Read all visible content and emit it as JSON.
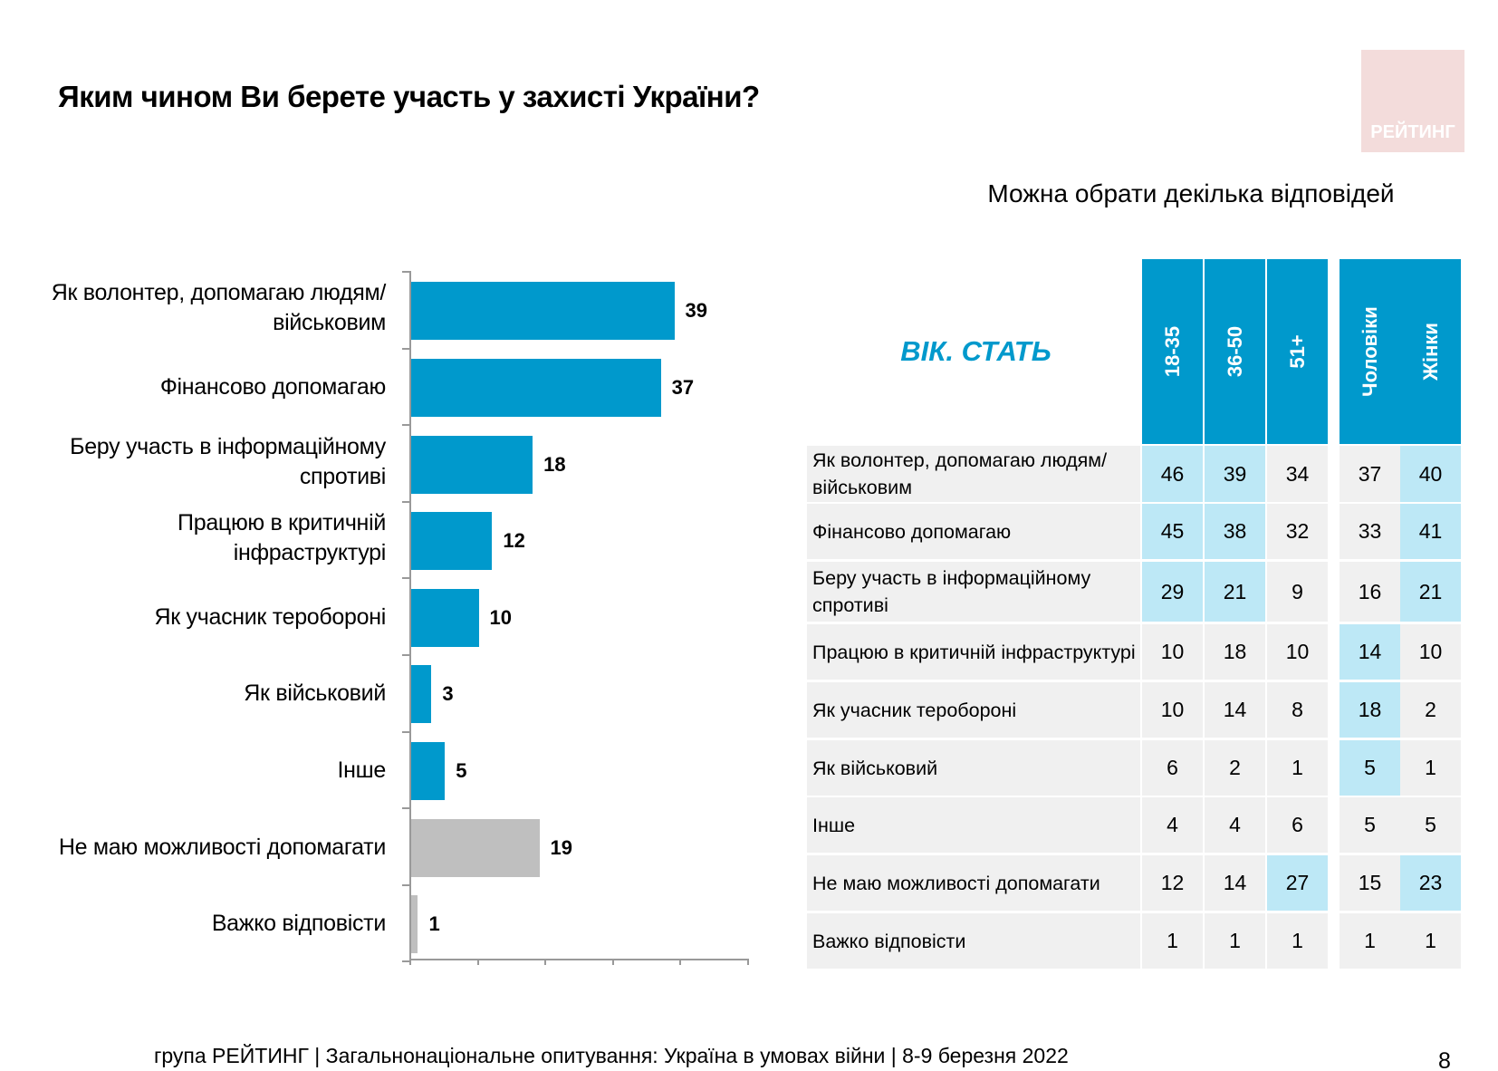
{
  "title": "Яким чином Ви берете участь у захисті України?",
  "logo_text": "РЕЙТИНГ",
  "subtitle": "Можна обрати декілька відповідей",
  "colors": {
    "bar_main": "#0099cc",
    "bar_other": "#bfbfbf",
    "header": "#0099cc",
    "highlight": "#bde8f6",
    "cell": "#f0f0f0"
  },
  "chart_data": {
    "type": "bar",
    "orientation": "horizontal",
    "categories": [
      "Як волонтер, допомагаю людям/військовим",
      "Фінансово допомагаю",
      "Беру участь в інформаційному спротиві",
      "Працюю в критичній інфраструктурі",
      "Як учасник теробороні",
      "Як військовий",
      "Інше",
      "Не маю можливості допомагати",
      "Важко відповісти"
    ],
    "values": [
      39,
      37,
      18,
      12,
      10,
      3,
      5,
      19,
      1
    ],
    "bar_colors": [
      "#0099cc",
      "#0099cc",
      "#0099cc",
      "#0099cc",
      "#0099cc",
      "#0099cc",
      "#0099cc",
      "#bfbfbf",
      "#bfbfbf"
    ],
    "xlim": [
      0,
      50
    ],
    "grid": false
  },
  "table": {
    "group_header": "ВІК. СТАТЬ",
    "columns": [
      "18-35",
      "36-50",
      "51+",
      "Чоловіки",
      "Жінки"
    ],
    "rows": [
      {
        "label": "Як волонтер, допомагаю людям/військовим",
        "values": [
          46,
          39,
          34,
          37,
          40
        ],
        "highlight": [
          true,
          true,
          false,
          false,
          true
        ]
      },
      {
        "label": "Фінансово допомагаю",
        "values": [
          45,
          38,
          32,
          33,
          41
        ],
        "highlight": [
          true,
          true,
          false,
          false,
          true
        ]
      },
      {
        "label": "Беру участь в інформаційному спротиві",
        "values": [
          29,
          21,
          9,
          16,
          21
        ],
        "highlight": [
          true,
          true,
          false,
          false,
          true
        ]
      },
      {
        "label": "Працюю в критичній інфраструктурі",
        "values": [
          10,
          18,
          10,
          14,
          10
        ],
        "highlight": [
          false,
          false,
          false,
          true,
          false
        ]
      },
      {
        "label": "Як учасник теробороні",
        "values": [
          10,
          14,
          8,
          18,
          2
        ],
        "highlight": [
          false,
          false,
          false,
          true,
          false
        ]
      },
      {
        "label": "Як військовий",
        "values": [
          6,
          2,
          1,
          5,
          1
        ],
        "highlight": [
          false,
          false,
          false,
          true,
          false
        ]
      },
      {
        "label": "Інше",
        "values": [
          4,
          4,
          6,
          5,
          5
        ],
        "highlight": [
          false,
          false,
          false,
          false,
          false
        ]
      },
      {
        "label": "Не маю можливості допомагати",
        "values": [
          12,
          14,
          27,
          15,
          23
        ],
        "highlight": [
          false,
          false,
          true,
          false,
          true
        ]
      },
      {
        "label": "Важко відповісти",
        "values": [
          1,
          1,
          1,
          1,
          1
        ],
        "highlight": [
          false,
          false,
          false,
          false,
          false
        ]
      }
    ]
  },
  "footer": "група РЕЙТИНГ | Загальнонаціональне опитування: Україна в умовах війни | 8-9 березня 2022",
  "page_number": "8"
}
